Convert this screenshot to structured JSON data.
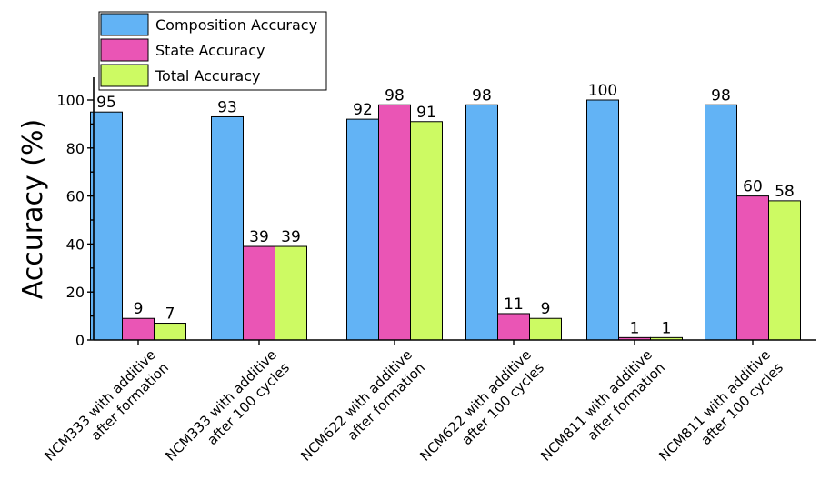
{
  "chart_data": {
    "type": "bar",
    "ylabel": "Accuracy (%)",
    "ylim": [
      0,
      100
    ],
    "yticks": [
      0,
      20,
      40,
      60,
      80,
      100
    ],
    "categories": [
      [
        "NCM333 with additive",
        "after formation"
      ],
      [
        "NCM333 with additive",
        "after 100 cycles"
      ],
      [
        "NCM622 with additive",
        "after formation"
      ],
      [
        "NCM622 with additive",
        "after 100 cycles"
      ],
      [
        "NCM811 with additive",
        "after formation"
      ],
      [
        "NCM811 with additive",
        "after 100 cycles"
      ]
    ],
    "series": [
      {
        "name": "Composition Accuracy",
        "color": "#62b3f5",
        "values": [
          95,
          93,
          92,
          98,
          100,
          98
        ]
      },
      {
        "name": "State Accuracy",
        "color": "#ea55b5",
        "values": [
          9,
          39,
          98,
          11,
          1,
          60
        ]
      },
      {
        "name": "Total Accuracy",
        "color": "#cdfa63",
        "values": [
          7,
          39,
          91,
          9,
          1,
          58
        ]
      }
    ],
    "legend_position": "top-left",
    "grid": false
  }
}
